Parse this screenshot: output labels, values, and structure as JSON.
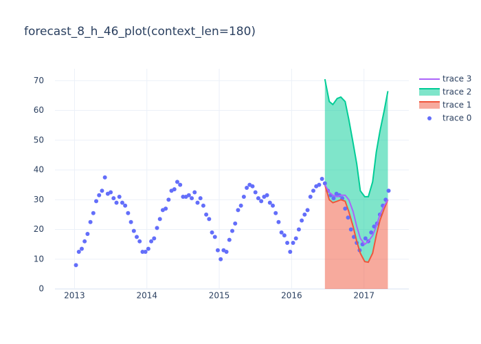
{
  "chart_data": {
    "type": "line",
    "title": "forecast_8_h_46_plot(context_len=180)",
    "xlim": [
      2012.73,
      2017.62
    ],
    "xticks": [
      2013,
      2014,
      2015,
      2016,
      2017
    ],
    "ylim": [
      0,
      74
    ],
    "yticks": [
      0,
      10,
      20,
      30,
      40,
      50,
      60,
      70
    ],
    "grid": true,
    "legend": "right",
    "series": [
      {
        "name": "trace 0",
        "mode": "markers",
        "color": "#636efa",
        "x": [
          2013.02,
          2013.06,
          2013.1,
          2013.14,
          2013.18,
          2013.22,
          2013.26,
          2013.3,
          2013.34,
          2013.38,
          2013.42,
          2013.46,
          2013.5,
          2013.54,
          2013.58,
          2013.62,
          2013.66,
          2013.7,
          2013.74,
          2013.78,
          2013.82,
          2013.86,
          2013.9,
          2013.94,
          2013.98,
          2014.02,
          2014.06,
          2014.1,
          2014.14,
          2014.18,
          2014.22,
          2014.26,
          2014.3,
          2014.34,
          2014.38,
          2014.42,
          2014.46,
          2014.5,
          2014.54,
          2014.58,
          2014.62,
          2014.66,
          2014.7,
          2014.74,
          2014.78,
          2014.82,
          2014.86,
          2014.9,
          2014.94,
          2014.98,
          2015.02,
          2015.06,
          2015.1,
          2015.14,
          2015.18,
          2015.22,
          2015.26,
          2015.3,
          2015.34,
          2015.38,
          2015.42,
          2015.46,
          2015.5,
          2015.54,
          2015.58,
          2015.62,
          2015.66,
          2015.7,
          2015.74,
          2015.78,
          2015.82,
          2015.86,
          2015.9,
          2015.94,
          2015.98,
          2016.02,
          2016.06,
          2016.1,
          2016.14,
          2016.18,
          2016.22,
          2016.26,
          2016.3,
          2016.34,
          2016.38,
          2016.42,
          2016.46,
          2016.5,
          2016.54,
          2016.58,
          2016.62,
          2016.66,
          2016.7,
          2016.74,
          2016.78,
          2016.82,
          2016.86,
          2016.9,
          2016.94,
          2016.98,
          2017.02,
          2017.06,
          2017.1,
          2017.14,
          2017.18,
          2017.22,
          2017.26,
          2017.3,
          2017.34
        ],
        "values": [
          8,
          12.5,
          13.5,
          16,
          18.5,
          22.5,
          25.5,
          29.5,
          31.5,
          33,
          37.5,
          32,
          32.5,
          30.5,
          29,
          31,
          29,
          28,
          25.5,
          22.5,
          19.5,
          17.5,
          16,
          12.5,
          12.5,
          13.5,
          16,
          17,
          20.5,
          23.5,
          26.5,
          27,
          30,
          33,
          33.5,
          36,
          35,
          31,
          31,
          31.5,
          30.5,
          32.5,
          29,
          30.5,
          28,
          25,
          23.5,
          19,
          17.5,
          13,
          10,
          13,
          12.5,
          16.5,
          19.5,
          22,
          26.5,
          28,
          31,
          34,
          35,
          34.5,
          32.5,
          30.5,
          29.5,
          31,
          31.5,
          29,
          28,
          25.5,
          22.5,
          19,
          18,
          15.5,
          12.5,
          15.5,
          17,
          20,
          23,
          25,
          26.5,
          31,
          33,
          34.5,
          35,
          37,
          35.5,
          33,
          31.5,
          30.5,
          32,
          31.5,
          30.5,
          27,
          24,
          20,
          17.5,
          15.5,
          13,
          15,
          17,
          16,
          19,
          21,
          22,
          25,
          28,
          30,
          33
        ]
      },
      {
        "name": "trace 1",
        "mode": "lines",
        "fill": "tozeroy",
        "color": "#ef553b",
        "x": [
          2016.46,
          2016.52,
          2016.57,
          2016.63,
          2016.68,
          2016.74,
          2016.79,
          2016.85,
          2016.9,
          2016.95,
          2017.01,
          2017.06,
          2017.12,
          2017.17,
          2017.22,
          2017.28,
          2017.33
        ],
        "values": [
          35,
          30,
          29,
          29.5,
          30,
          29.5,
          26,
          21,
          16,
          12,
          9.2,
          9,
          12,
          18,
          23,
          27,
          30
        ]
      },
      {
        "name": "trace 2",
        "mode": "lines",
        "fill": "tonexty",
        "color": "#00cc96",
        "x": [
          2016.46,
          2016.52,
          2016.57,
          2016.63,
          2016.68,
          2016.74,
          2016.79,
          2016.85,
          2016.9,
          2016.95,
          2017.01,
          2017.06,
          2017.12,
          2017.17,
          2017.22,
          2017.28,
          2017.33
        ],
        "values": [
          70.5,
          63,
          62,
          64,
          64.5,
          63,
          57,
          49,
          42,
          33,
          31,
          31,
          36,
          46,
          53,
          60,
          66.5
        ]
      },
      {
        "name": "trace 3",
        "mode": "lines",
        "color": "#ab63fa",
        "x": [
          2016.46,
          2016.52,
          2016.57,
          2016.63,
          2016.68,
          2016.74,
          2016.79,
          2016.85,
          2016.9,
          2016.95,
          2017.01,
          2017.06,
          2017.12,
          2017.17,
          2017.22,
          2017.28,
          2017.33
        ],
        "values": [
          35,
          32.5,
          31.5,
          31,
          31.5,
          31.5,
          30,
          26,
          21,
          17,
          15,
          16,
          18,
          21,
          25,
          28,
          30
        ]
      }
    ]
  }
}
